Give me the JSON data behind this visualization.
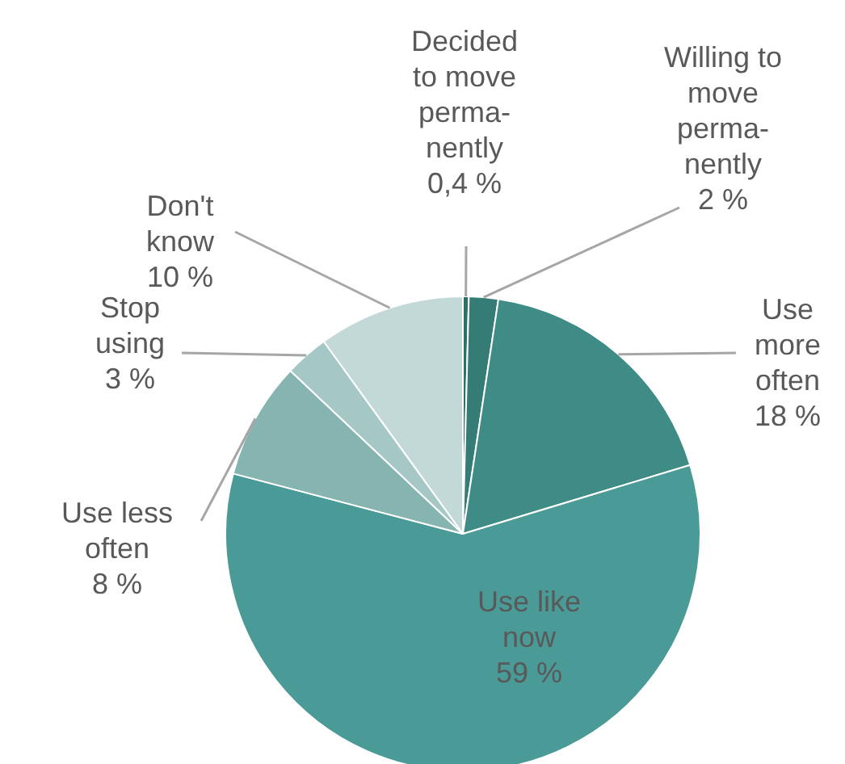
{
  "chart_data": {
    "type": "pie",
    "categories": [
      "Decided\nto move\nperma-\nnently",
      "Willing to\nmove\nperma-\nnently",
      "Use\nmore\noften",
      "Use like\nnow",
      "Use less\noften",
      "Stop\nusing",
      "Don't\nknow"
    ],
    "values": [
      0.4,
      2,
      18,
      59,
      8,
      3,
      10
    ],
    "colors": [
      "#2f6f6a",
      "#357c76",
      "#3f8c86",
      "#4a9b97",
      "#86b4b1",
      "#a5c8c6",
      "#c3d9d8"
    ],
    "value_labels": [
      "0,4 %",
      "2 %",
      "18 %",
      "59 %",
      "8 %",
      "3 %",
      "10 %"
    ]
  }
}
